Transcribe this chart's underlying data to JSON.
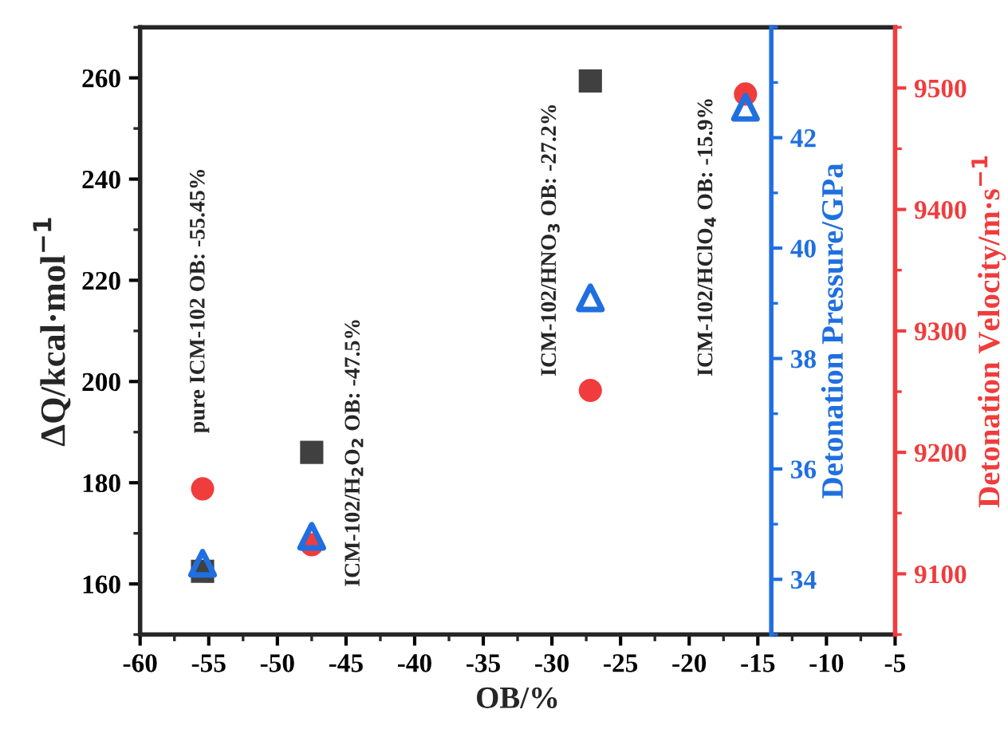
{
  "chart_data": {
    "type": "scatter",
    "xlabel": "OB/%",
    "ylabel": "ΔQ/kcal·mol$^{−1}$",
    "y2label": "Detonation Pressure/GPa",
    "y3label": "Detonation Velocity/m·s$^{−1}$",
    "x": [
      -55.45,
      -47.5,
      -27.2,
      -15.9
    ],
    "series": [
      {
        "color": "#404040",
        "marker": "square",
        "axis": "y",
        "values": [
          162.5,
          186,
          259.4,
          null
        ]
      },
      {
        "color": "#1f6fe0",
        "marker": "triangle",
        "axis": "y2",
        "values": [
          34.29,
          34.78,
          39.1,
          42.55
        ]
      },
      {
        "color": "#f03c3c",
        "marker": "circle",
        "axis": "y3",
        "values": [
          9170,
          9124,
          9251,
          9495
        ]
      }
    ],
    "xlim": [
      -60,
      -5
    ],
    "xticks": [
      -60,
      -55,
      -50,
      -45,
      -40,
      -35,
      -30,
      -25,
      -20,
      -15,
      -10,
      -5
    ],
    "ylim": [
      150,
      270
    ],
    "yticks": [
      160,
      180,
      200,
      220,
      240,
      260
    ],
    "y2lim": [
      33,
      44
    ],
    "y2ticks": [
      34,
      36,
      38,
      40,
      42
    ],
    "y3lim": [
      9050,
      9550
    ],
    "y3ticks": [
      9100,
      9200,
      9300,
      9400,
      9500
    ],
    "annotations": [
      "pure ICM-102 OB: -55.45%",
      "ICM-102/H$_{2}$O$_{2}$ OB: -47.5%",
      "ICM-102/HNO$_{3}$ OB: -27.2%",
      "ICM-102/HClO$_{4}$ OB: -15.9%"
    ],
    "grid": false,
    "legend": false
  }
}
